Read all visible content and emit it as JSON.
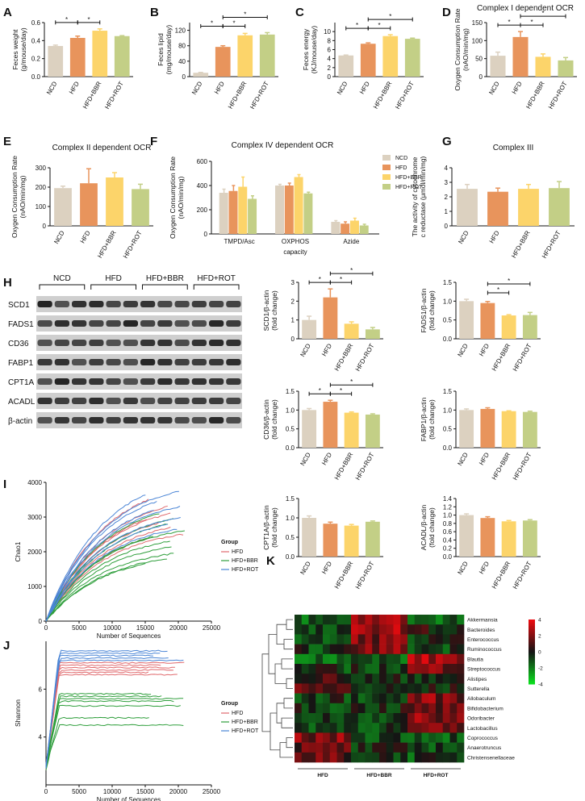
{
  "colors": {
    "NCD": "#dcd1c0",
    "HFD": "#e8945c",
    "HFD+BBR": "#fcd46a",
    "HFD+ROT": "#c3cf86"
  },
  "line_colors": {
    "HFD": "#e0696d",
    "HFD+BBR": "#2e9e3b",
    "HFD+ROT": "#4a85d6"
  },
  "panel_letters": [
    "A",
    "B",
    "C",
    "D",
    "E",
    "F",
    "G",
    "H",
    "I",
    "J",
    "K"
  ],
  "chart_data": [
    {
      "id": "A",
      "type": "bar",
      "categories": [
        "NCD",
        "HFD",
        "HFD+BBR",
        "HFD+ROT"
      ],
      "values": [
        0.34,
        0.43,
        0.51,
        0.45
      ],
      "errors": [
        0.01,
        0.02,
        0.02,
        0.005
      ],
      "title": "",
      "ylabel": [
        "Feces weight",
        "(g/mouse/day)"
      ],
      "ylim": [
        0,
        0.6
      ],
      "yticks": [
        0.0,
        0.2,
        0.4,
        0.6
      ],
      "sig": [
        {
          "a": 0,
          "b": 1,
          "lvl": 0
        },
        {
          "a": 1,
          "b": 2,
          "lvl": 0
        }
      ]
    },
    {
      "id": "B",
      "type": "bar",
      "categories": [
        "NCD",
        "HFD",
        "HFD+BBR",
        "HFD+ROT"
      ],
      "values": [
        10,
        77,
        107,
        109
      ],
      "errors": [
        1,
        3,
        5,
        5
      ],
      "title": "",
      "ylabel": [
        "Feces lipid",
        "(mg/mouse/day)"
      ],
      "ylim": [
        0,
        140
      ],
      "yticks": [
        0,
        40,
        80,
        120
      ],
      "sig": [
        {
          "a": 0,
          "b": 1,
          "lvl": 0
        },
        {
          "a": 1,
          "b": 2,
          "lvl": 0
        },
        {
          "a": 1,
          "b": 3,
          "lvl": 1
        }
      ]
    },
    {
      "id": "C",
      "type": "bar",
      "categories": [
        "NCD",
        "HFD",
        "HFD+BBR",
        "HFD+ROT"
      ],
      "values": [
        4.7,
        7.3,
        9.0,
        8.4
      ],
      "errors": [
        0.1,
        0.2,
        0.3,
        0.15
      ],
      "title": "",
      "ylabel": [
        "Feces energy",
        "(KJ/mouse/day)"
      ],
      "ylim": [
        0,
        12
      ],
      "yticks": [
        0,
        2,
        4,
        6,
        8,
        10
      ],
      "sig": [
        {
          "a": 0,
          "b": 1,
          "lvl": 0
        },
        {
          "a": 1,
          "b": 2,
          "lvl": 0
        },
        {
          "a": 1,
          "b": 3,
          "lvl": 1
        }
      ]
    },
    {
      "id": "D",
      "type": "bar",
      "categories": [
        "NCD",
        "HFD",
        "HFD+BBR",
        "HFD+ROT"
      ],
      "values": [
        58,
        110,
        55,
        45
      ],
      "errors": [
        10,
        15,
        8,
        8
      ],
      "title": "Complex I dependent OCR",
      "ylabel": [
        "Oxygen Consumption Rate",
        "(nAO/min/mg)"
      ],
      "ylim": [
        0,
        150
      ],
      "yticks": [
        0,
        50,
        100,
        150
      ],
      "sig": [
        {
          "a": 0,
          "b": 1,
          "lvl": 0
        },
        {
          "a": 1,
          "b": 2,
          "lvl": 0
        },
        {
          "a": 1,
          "b": 3,
          "lvl": 1
        }
      ]
    },
    {
      "id": "E",
      "type": "bar",
      "categories": [
        "NCD",
        "HFD",
        "HFD+BBR",
        "HFD+ROT"
      ],
      "values": [
        195,
        220,
        250,
        190
      ],
      "errors": [
        10,
        75,
        25,
        25
      ],
      "title": "Complex II dependent OCR",
      "ylabel": [
        "Oxygen Consumption Rate",
        "(nAO/min/mg)"
      ],
      "ylim": [
        0,
        300
      ],
      "yticks": [
        0,
        100,
        200,
        300
      ],
      "sig": []
    },
    {
      "id": "F",
      "type": "bar",
      "categories": [
        "TMPD/Asc",
        "OXPHOS",
        "Azide"
      ],
      "xlabel": "capacity",
      "series": [
        {
          "name": "NCD",
          "values": [
            340,
            400,
            100
          ],
          "errors": [
            30,
            10,
            10
          ]
        },
        {
          "name": "HFD",
          "values": [
            355,
            400,
            85
          ],
          "errors": [
            45,
            20,
            15
          ]
        },
        {
          "name": "HFD+BBR",
          "values": [
            390,
            470,
            110
          ],
          "errors": [
            80,
            20,
            20
          ]
        },
        {
          "name": "HFD+ROT",
          "values": [
            290,
            335,
            70
          ],
          "errors": [
            25,
            10,
            10
          ]
        }
      ],
      "title": "Complex IV dependent OCR",
      "ylabel": [
        "Oxygen Consumption Rate",
        "(nAO/min/mg)"
      ],
      "ylim": [
        0,
        600
      ],
      "yticks": [
        0,
        200,
        400,
        600
      ],
      "legend": "top-right"
    },
    {
      "id": "G",
      "type": "bar",
      "categories": [
        "NCD",
        "HFD",
        "HFD+BBR",
        "HFD+ROT"
      ],
      "values": [
        2.55,
        2.35,
        2.55,
        2.6
      ],
      "errors": [
        0.3,
        0.25,
        0.3,
        0.45
      ],
      "title": "Complex III",
      "ylabel": [
        "The activity of cytochrome",
        "c reductase (μmol/min/mg)"
      ],
      "ylim": [
        0,
        4
      ],
      "yticks": [
        0,
        1,
        2,
        3,
        4
      ],
      "sig": []
    },
    {
      "id": "SCD1",
      "type": "bar",
      "categories": [
        "NCD",
        "HFD",
        "HFD+BBR",
        "HFD+ROT"
      ],
      "values": [
        1.0,
        2.2,
        0.8,
        0.5
      ],
      "errors": [
        0.2,
        0.45,
        0.1,
        0.1
      ],
      "title": "",
      "ylabel": [
        "SCD1/β-actin",
        "(fold change)"
      ],
      "ylim": [
        0,
        3
      ],
      "yticks": [
        0,
        1,
        2,
        3
      ],
      "sig": [
        {
          "a": 0,
          "b": 1,
          "lvl": 0
        },
        {
          "a": 1,
          "b": 2,
          "lvl": 0
        },
        {
          "a": 1,
          "b": 3,
          "lvl": 1
        }
      ]
    },
    {
      "id": "FADS1",
      "type": "bar",
      "categories": [
        "NCD",
        "HFD",
        "HFD+BBR",
        "HFD+ROT"
      ],
      "values": [
        1.0,
        0.95,
        0.62,
        0.63
      ],
      "errors": [
        0.05,
        0.04,
        0.02,
        0.07
      ],
      "title": "",
      "ylabel": [
        "FADS1/β-actin",
        "(fold change)"
      ],
      "ylim": [
        0,
        1.5
      ],
      "yticks": [
        0.0,
        0.5,
        1.0,
        1.5
      ],
      "sig": [
        {
          "a": 1,
          "b": 2,
          "lvl": 0
        },
        {
          "a": 1,
          "b": 3,
          "lvl": 1
        }
      ]
    },
    {
      "id": "CD36",
      "type": "bar",
      "categories": [
        "NCD",
        "HFD",
        "HFD+BBR",
        "HFD+ROT"
      ],
      "values": [
        1.0,
        1.22,
        0.93,
        0.88
      ],
      "errors": [
        0.04,
        0.04,
        0.02,
        0.02
      ],
      "title": "",
      "ylabel": [
        "CD36/β-actin",
        "(fold change)"
      ],
      "ylim": [
        0,
        1.5
      ],
      "yticks": [
        0.0,
        0.5,
        1.0,
        1.5
      ],
      "sig": [
        {
          "a": 0,
          "b": 1,
          "lvl": 0
        },
        {
          "a": 1,
          "b": 2,
          "lvl": 0
        },
        {
          "a": 1,
          "b": 3,
          "lvl": 1
        }
      ]
    },
    {
      "id": "FABP1",
      "type": "bar",
      "categories": [
        "NCD",
        "HFD",
        "HFD+BBR",
        "HFD+ROT"
      ],
      "values": [
        1.0,
        1.03,
        0.97,
        0.95
      ],
      "errors": [
        0.03,
        0.03,
        0.01,
        0.02
      ],
      "title": "",
      "ylabel": [
        "FABP1/β-actin",
        "(fold change)"
      ],
      "ylim": [
        0,
        1.5
      ],
      "yticks": [
        0.0,
        0.5,
        1.0,
        1.5
      ],
      "sig": []
    },
    {
      "id": "CPT1A",
      "type": "bar",
      "categories": [
        "NCD",
        "HFD",
        "HFD+BBR",
        "HFD+ROT"
      ],
      "values": [
        1.0,
        0.85,
        0.8,
        0.9
      ],
      "errors": [
        0.05,
        0.04,
        0.03,
        0.02
      ],
      "title": "",
      "ylabel": [
        "CPT1A/β-actin",
        "(fold change)"
      ],
      "ylim": [
        0,
        1.5
      ],
      "yticks": [
        0.0,
        0.5,
        1.0,
        1.5
      ],
      "sig": []
    },
    {
      "id": "ACADL",
      "type": "bar",
      "categories": [
        "NCD",
        "HFD",
        "HFD+BBR",
        "HFD+ROT"
      ],
      "values": [
        1.0,
        0.93,
        0.85,
        0.87
      ],
      "errors": [
        0.03,
        0.03,
        0.02,
        0.02
      ],
      "title": "",
      "ylabel": [
        "ACADL/β-actin",
        "(fold change)"
      ],
      "ylim": [
        0,
        1.4
      ],
      "yticks": [
        0.0,
        0.2,
        0.4,
        0.6,
        0.8,
        1.0,
        1.2,
        1.4
      ],
      "sig": []
    },
    {
      "id": "I",
      "type": "line",
      "title": "",
      "xlabel": "Number of Sequences",
      "ylabel": "Chao1",
      "xlim": [
        0,
        25000
      ],
      "ylim": [
        0,
        4000
      ],
      "xticks": [
        0,
        5000,
        10000,
        15000,
        20000,
        25000
      ],
      "yticks": [
        0,
        1000,
        2000,
        3000,
        4000
      ],
      "legend_title": "Group",
      "legend": "right",
      "series": [
        {
          "name": "HFD",
          "finals": [
            3500,
            3300,
            3100,
            2950,
            2850,
            2700,
            2500,
            2400
          ]
        },
        {
          "name": "HFD+BBR",
          "finals": [
            3100,
            2950,
            2800,
            2600,
            2450,
            2300,
            2150,
            1950,
            1800,
            1650
          ]
        },
        {
          "name": "HFD+ROT",
          "finals": [
            3750,
            3650,
            3450,
            3300,
            3200,
            3000,
            2800,
            2650
          ]
        }
      ]
    },
    {
      "id": "J",
      "type": "line",
      "title": "",
      "xlabel": "Number of Sequences",
      "ylabel": "Shannon",
      "xlim": [
        0,
        25000
      ],
      "ylim": [
        2,
        8
      ],
      "xticks": [
        0,
        5000,
        10000,
        15000,
        20000,
        25000
      ],
      "yticks": [
        4,
        6
      ],
      "legend_title": "Group",
      "legend": "right",
      "series": [
        {
          "name": "HFD",
          "finals": [
            7.1,
            7.0,
            6.9,
            6.8,
            6.7,
            6.6
          ]
        },
        {
          "name": "HFD+BBR",
          "finals": [
            5.8,
            5.7,
            5.6,
            5.5,
            5.3,
            4.8,
            4.5
          ]
        },
        {
          "name": "HFD+ROT",
          "finals": [
            7.6,
            7.5,
            7.4,
            7.3,
            7.2
          ]
        }
      ]
    },
    {
      "id": "K",
      "type": "heatmap",
      "title": "",
      "rows": [
        "Akkermansia",
        "Bacteroides",
        "Enterococcus",
        "Ruminococcus",
        "Blautia",
        "Streptococcus",
        "Alistipes",
        "Sutterella",
        "Allobaculum",
        "Bifidobacterium",
        "Odoribacter",
        "Lactobacillus",
        "Coprococcus",
        "Anaerotruncus",
        "Christensenellaceae"
      ],
      "groups": [
        "HFD",
        "HFD+BBR",
        "HFD+ROT"
      ],
      "cols_per_group": 8,
      "scale": [
        -4,
        4
      ],
      "scale_ticks": [
        4,
        2,
        0,
        -2,
        -4
      ]
    }
  ],
  "western": {
    "genes": [
      "SCD1",
      "FADS1",
      "CD36",
      "FABP1",
      "CPT1A",
      "ACADL",
      "β-actin"
    ],
    "groups": [
      "NCD",
      "HFD",
      "HFD+BBR",
      "HFD+ROT"
    ],
    "lanes_per_group": 3
  }
}
